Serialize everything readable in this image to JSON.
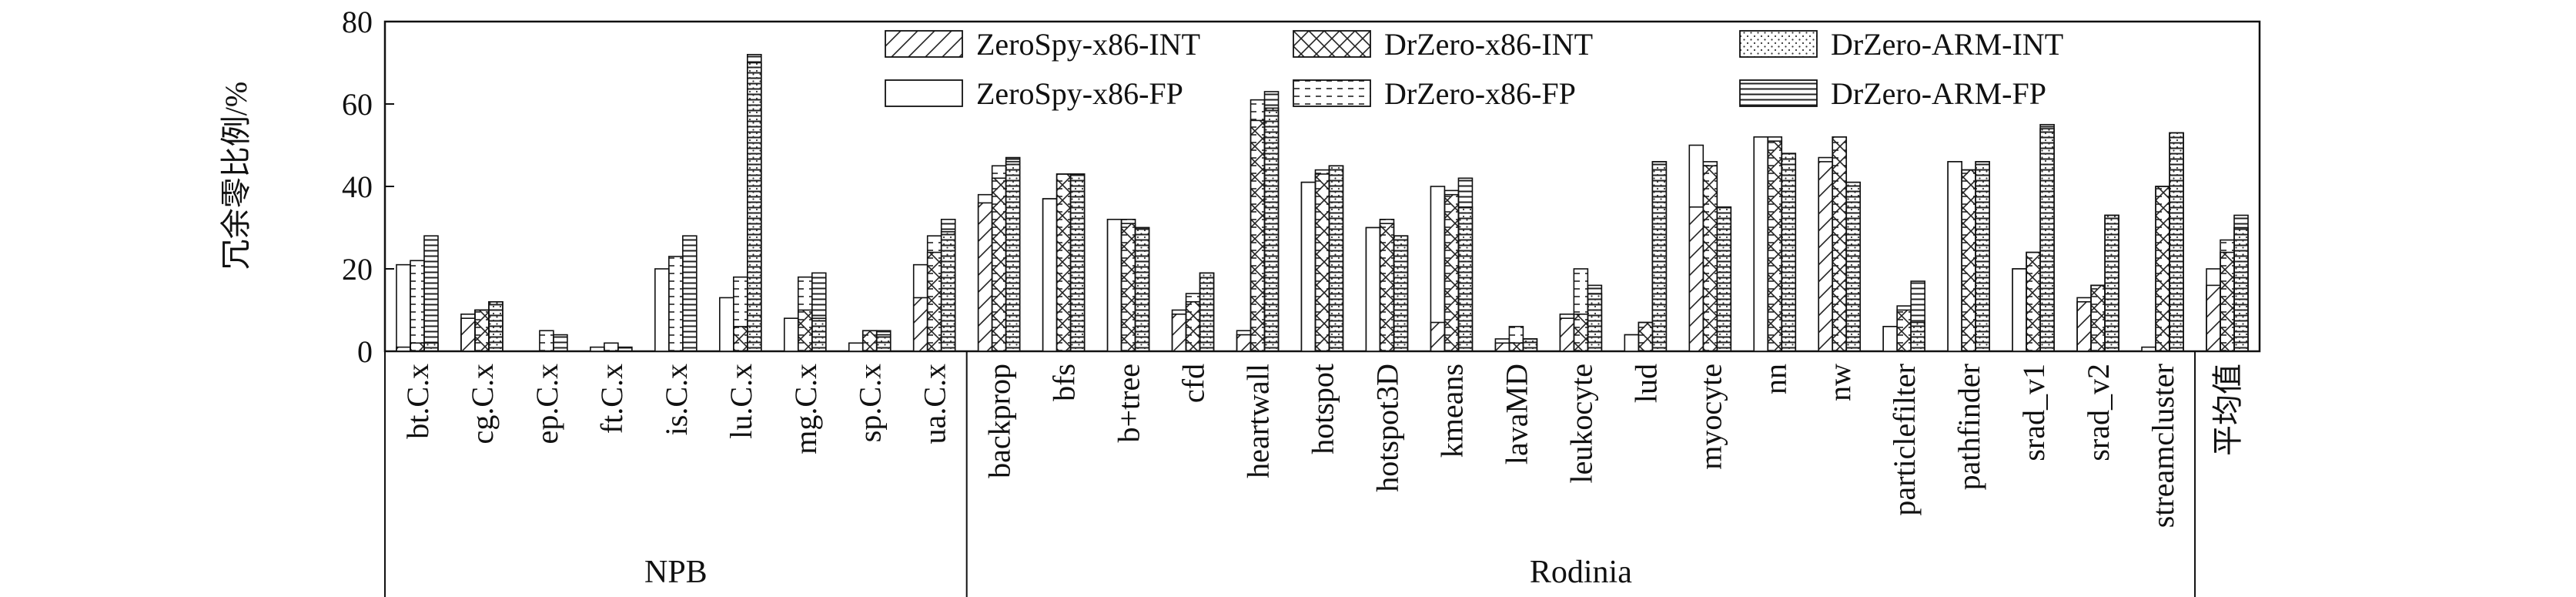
{
  "chart_data": {
    "type": "bar",
    "ylabel": "冗余零比例/%",
    "ylim": [
      0,
      80
    ],
    "yticks": [
      0,
      20,
      40,
      60,
      80
    ],
    "legend_position": "top-center",
    "series": [
      {
        "name": "ZeroSpy-x86-INT",
        "pattern": "diag",
        "values": [
          1,
          8,
          0,
          0,
          0,
          0,
          0,
          0,
          13,
          36,
          37,
          32,
          9,
          4,
          41,
          30,
          7,
          2,
          8,
          4,
          35,
          52,
          46,
          6,
          46,
          20,
          12,
          0,
          16
        ]
      },
      {
        "name": "ZeroSpy-x86-FP",
        "pattern": "none",
        "values": [
          21,
          9,
          0,
          1,
          20,
          13,
          8,
          2,
          21,
          38,
          37,
          32,
          10,
          5,
          41,
          30,
          40,
          3,
          9,
          4,
          50,
          52,
          47,
          6,
          46,
          20,
          13,
          1,
          20
        ]
      },
      {
        "name": "DrZero-x86-INT",
        "pattern": "cross",
        "values": [
          2,
          10,
          0,
          0,
          0,
          6,
          10,
          5,
          24,
          42,
          43,
          31,
          12,
          56,
          43,
          31,
          38,
          2,
          9,
          7,
          45,
          51,
          52,
          10,
          44,
          24,
          16,
          40,
          24
        ]
      },
      {
        "name": "DrZero-x86-FP",
        "pattern": "dash",
        "values": [
          22,
          10,
          5,
          2,
          23,
          18,
          18,
          5,
          28,
          45,
          43,
          32,
          14,
          61,
          44,
          32,
          39,
          6,
          20,
          7,
          46,
          52,
          52,
          11,
          44,
          24,
          16,
          40,
          27
        ]
      },
      {
        "name": "DrZero-ARM-INT",
        "pattern": "dots",
        "values": [
          2,
          12,
          0,
          0,
          0,
          70,
          8,
          4,
          29,
          46,
          43,
          30,
          19,
          59,
          45,
          28,
          35,
          3,
          14,
          46,
          35,
          48,
          41,
          7,
          46,
          54,
          33,
          53,
          30
        ]
      },
      {
        "name": "DrZero-ARM-FP",
        "pattern": "hlines",
        "values": [
          28,
          12,
          4,
          1,
          28,
          72,
          19,
          5,
          32,
          47,
          43,
          30,
          19,
          63,
          45,
          28,
          42,
          3,
          16,
          46,
          35,
          48,
          41,
          17,
          46,
          55,
          33,
          53,
          33
        ]
      }
    ],
    "categories": [
      "bt.C.x",
      "cg.C.x",
      "ep.C.x",
      "ft.C.x",
      "is.C.x",
      "lu.C.x",
      "mg.C.x",
      "sp.C.x",
      "ua.C.x",
      "backprop",
      "bfs",
      "b+tree",
      "cfd",
      "heartwall",
      "hotspot",
      "hotspot3D",
      "kmeans",
      "lavaMD",
      "leukocyte",
      "lud",
      "myocyte",
      "nn",
      "nw",
      "particlefilter",
      "pathfinder",
      "srad_v1",
      "srad_v2",
      "streamcluster",
      "平均值"
    ],
    "groups": [
      {
        "label": "NPB",
        "start": 0,
        "end": 8
      },
      {
        "label": "Rodinia",
        "start": 9,
        "end": 27
      },
      {
        "label": "",
        "start": 28,
        "end": 28
      }
    ]
  }
}
